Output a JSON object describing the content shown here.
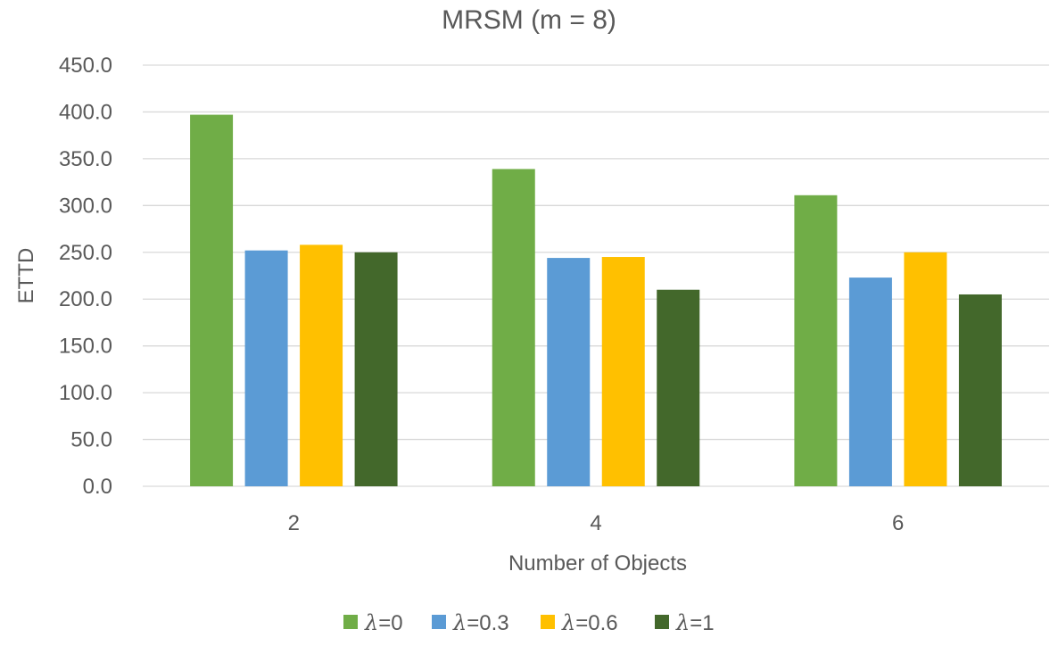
{
  "chart_data": {
    "type": "bar",
    "title": "MRSM (m = 8)",
    "xlabel": "Number of Objects",
    "ylabel": "ETTD",
    "categories": [
      "2",
      "4",
      "6"
    ],
    "ylim": [
      0,
      450
    ],
    "yticks": [
      0,
      50,
      100,
      150,
      200,
      250,
      300,
      350,
      400,
      450
    ],
    "ytick_labels": [
      "0.0",
      "50.0",
      "100.0",
      "150.0",
      "200.0",
      "250.0",
      "300.0",
      "350.0",
      "400.0",
      "450.0"
    ],
    "grid": true,
    "legend_position": "bottom",
    "series": [
      {
        "name": "λ=0",
        "symbol": "λ",
        "suffix": "=0",
        "color": "#70AD47",
        "values": [
          397,
          339,
          311
        ]
      },
      {
        "name": "λ=0.3",
        "symbol": "λ",
        "suffix": "=0.3",
        "color": "#5B9BD5",
        "values": [
          252,
          244,
          223
        ]
      },
      {
        "name": "λ=0.6",
        "symbol": "λ",
        "suffix": "=0.6",
        "color": "#FFC000",
        "values": [
          258,
          245,
          250
        ]
      },
      {
        "name": "λ=1",
        "symbol": "λ",
        "suffix": "=1",
        "color": "#43682B",
        "values": [
          250,
          210,
          205
        ]
      }
    ]
  },
  "colors": {
    "gridline": "#D9D9D9",
    "text": "#595959"
  }
}
